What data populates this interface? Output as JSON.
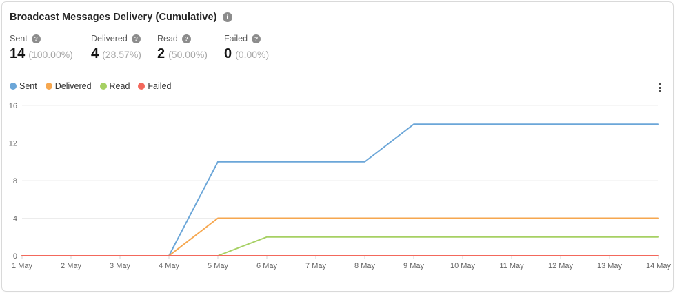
{
  "header": {
    "title": "Broadcast Messages Delivery (Cumulative)",
    "info_glyph": "i"
  },
  "icons": {
    "help_glyph": "?"
  },
  "stats": {
    "items": [
      {
        "label": "Sent",
        "value": "14",
        "percent": "(100.00%)"
      },
      {
        "label": "Delivered",
        "value": "4",
        "percent": "(28.57%)"
      },
      {
        "label": "Read",
        "value": "2",
        "percent": "(50.00%)"
      },
      {
        "label": "Failed",
        "value": "0",
        "percent": "(0.00%)"
      }
    ]
  },
  "chart_data": {
    "type": "line",
    "title": "Broadcast Messages Delivery (Cumulative)",
    "categories": [
      "1 May",
      "2 May",
      "3 May",
      "4 May",
      "5 May",
      "6 May",
      "7 May",
      "8 May",
      "9 May",
      "10 May",
      "11 May",
      "12 May",
      "13 May",
      "14 May"
    ],
    "y_ticks": [
      0,
      4,
      8,
      12,
      16
    ],
    "ylim": [
      0,
      16
    ],
    "grid": true,
    "legend_position": "top-left",
    "axis_label_color": "#666666",
    "gridline_color": "#ececec",
    "series": [
      {
        "name": "Sent",
        "color": "#6ba6d8",
        "values": [
          0,
          0,
          0,
          0,
          10,
          10,
          10,
          10,
          14,
          14,
          14,
          14,
          14,
          14
        ]
      },
      {
        "name": "Delivered",
        "color": "#f6a74f",
        "values": [
          0,
          0,
          0,
          0,
          4,
          4,
          4,
          4,
          4,
          4,
          4,
          4,
          4,
          4
        ]
      },
      {
        "name": "Read",
        "color": "#a6d063",
        "values": [
          0,
          0,
          0,
          0,
          0,
          2,
          2,
          2,
          2,
          2,
          2,
          2,
          2,
          2
        ]
      },
      {
        "name": "Failed",
        "color": "#f3685c",
        "values": [
          0,
          0,
          0,
          0,
          0,
          0,
          0,
          0,
          0,
          0,
          0,
          0,
          0,
          0
        ]
      }
    ]
  }
}
